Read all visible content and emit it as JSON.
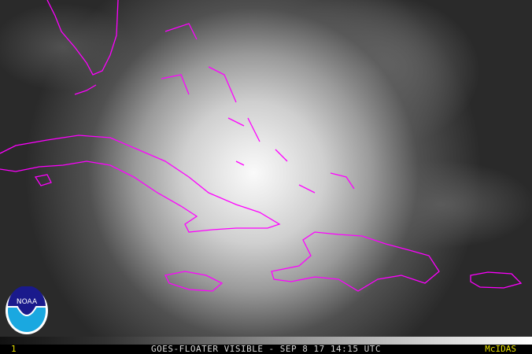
{
  "caption": {
    "frame_number": "1",
    "title": "GOES-FLOATER VISIBLE - SEP 8 17 14:15 UTC",
    "brand": "McIDAS"
  },
  "logo": {
    "text": "NOAA",
    "colors": {
      "top": "#1a1a8c",
      "bottom": "#1aa8e0"
    }
  },
  "colors": {
    "coastline": "#ff00ff",
    "accent_text": "#e8e000"
  }
}
